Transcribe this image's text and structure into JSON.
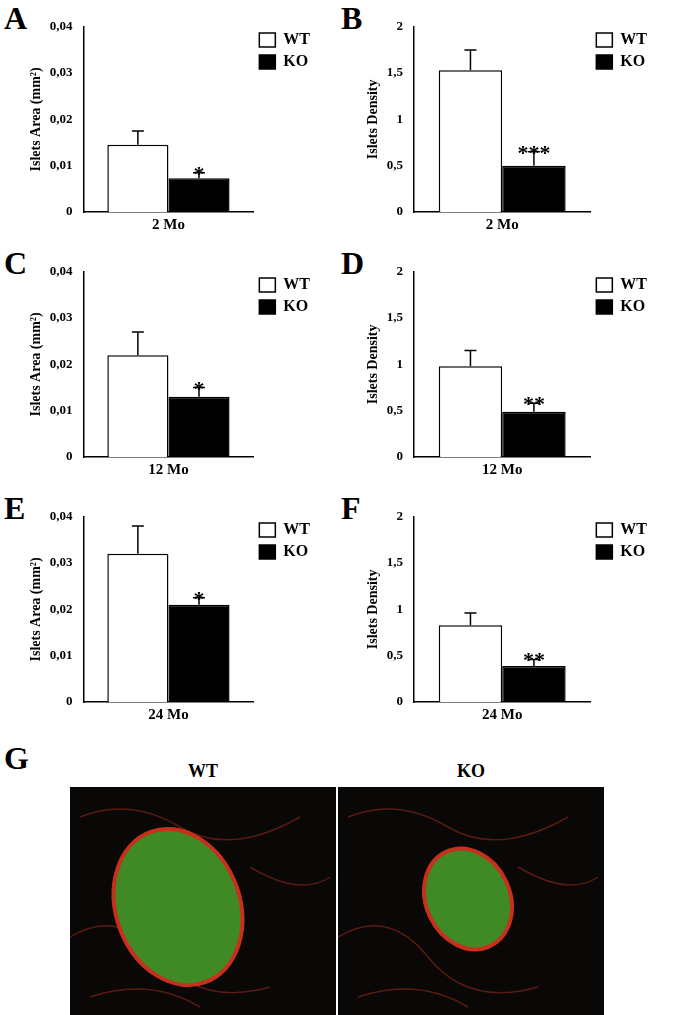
{
  "chart_data": [
    {
      "panel": "A",
      "type": "bar",
      "y_label": "Islets Area (mm²)",
      "categories": [
        "2 Mo"
      ],
      "series": [
        {
          "name": "WT",
          "color": "#ffffff",
          "values": [
            0.0145
          ],
          "errors": [
            0.003
          ]
        },
        {
          "name": "KO",
          "color": "#000000",
          "values": [
            0.0073
          ],
          "errors": [
            0.0012
          ]
        }
      ],
      "annotations": [
        {
          "series": "KO",
          "text": "*"
        }
      ],
      "ylim": [
        0,
        0.04
      ],
      "yticks": [
        0,
        {
          "value": 0.01,
          "label": "0,01"
        },
        {
          "value": 0.02,
          "label": "0,02"
        },
        {
          "value": 0.03,
          "label": "0,03"
        },
        {
          "value": 0.04,
          "label": "0,04"
        }
      ],
      "grid": false,
      "legend": "top right"
    },
    {
      "panel": "B",
      "type": "bar",
      "y_label": "Islets Density",
      "categories": [
        "2 Mo"
      ],
      "series": [
        {
          "name": "WT",
          "color": "#ffffff",
          "values": [
            1.53
          ],
          "errors": [
            0.22
          ]
        },
        {
          "name": "KO",
          "color": "#000000",
          "values": [
            0.5
          ],
          "errors": [
            0.15
          ]
        }
      ],
      "annotations": [
        {
          "series": "KO",
          "text": "***"
        }
      ],
      "ylim": [
        0,
        2
      ],
      "yticks": [
        0,
        {
          "value": 0.5,
          "label": "0,5"
        },
        1,
        {
          "value": 1.5,
          "label": "1,5"
        },
        2
      ],
      "grid": false,
      "legend": "top right"
    },
    {
      "panel": "C",
      "type": "bar",
      "y_label": "Islets Area (mm²)",
      "categories": [
        "12 Mo"
      ],
      "series": [
        {
          "name": "WT",
          "color": "#ffffff",
          "values": [
            0.022
          ],
          "errors": [
            0.005
          ]
        },
        {
          "name": "KO",
          "color": "#000000",
          "values": [
            0.013
          ],
          "errors": [
            0.002
          ]
        }
      ],
      "annotations": [
        {
          "series": "KO",
          "text": "*"
        }
      ],
      "ylim": [
        0,
        0.04
      ],
      "yticks": [
        0,
        {
          "value": 0.01,
          "label": "0,01"
        },
        {
          "value": 0.02,
          "label": "0,02"
        },
        {
          "value": 0.03,
          "label": "0,03"
        },
        {
          "value": 0.04,
          "label": "0,04"
        }
      ],
      "grid": false,
      "legend": "top right"
    },
    {
      "panel": "D",
      "type": "bar",
      "y_label": "Islets Density",
      "categories": [
        "12 Mo"
      ],
      "series": [
        {
          "name": "WT",
          "color": "#ffffff",
          "values": [
            0.98
          ],
          "errors": [
            0.17
          ]
        },
        {
          "name": "KO",
          "color": "#000000",
          "values": [
            0.49
          ],
          "errors": [
            0.09
          ]
        }
      ],
      "annotations": [
        {
          "series": "KO",
          "text": "**"
        }
      ],
      "ylim": [
        0,
        2
      ],
      "yticks": [
        0,
        {
          "value": 0.5,
          "label": "0,5"
        },
        1,
        {
          "value": 1.5,
          "label": "1,5"
        },
        2
      ],
      "grid": false,
      "legend": "top right"
    },
    {
      "panel": "E",
      "type": "bar",
      "y_label": "Islets Area (mm²)",
      "categories": [
        "24 Mo"
      ],
      "series": [
        {
          "name": "WT",
          "color": "#ffffff",
          "values": [
            0.032
          ],
          "errors": [
            0.006
          ]
        },
        {
          "name": "KO",
          "color": "#000000",
          "values": [
            0.021
          ],
          "errors": [
            0.0015
          ]
        }
      ],
      "annotations": [
        {
          "series": "KO",
          "text": "*"
        }
      ],
      "ylim": [
        0,
        0.04
      ],
      "yticks": [
        0,
        {
          "value": 0.01,
          "label": "0,01"
        },
        {
          "value": 0.02,
          "label": "0,02"
        },
        {
          "value": 0.03,
          "label": "0,03"
        },
        {
          "value": 0.04,
          "label": "0,04"
        }
      ],
      "grid": false,
      "legend": "top right"
    },
    {
      "panel": "F",
      "type": "bar",
      "y_label": "Islets Density",
      "categories": [
        "24 Mo"
      ],
      "series": [
        {
          "name": "WT",
          "color": "#ffffff",
          "values": [
            0.83
          ],
          "errors": [
            0.13
          ]
        },
        {
          "name": "KO",
          "color": "#000000",
          "values": [
            0.39
          ],
          "errors": [
            0.07
          ]
        }
      ],
      "annotations": [
        {
          "series": "KO",
          "text": "**"
        }
      ],
      "ylim": [
        0,
        2
      ],
      "yticks": [
        0,
        {
          "value": 0.5,
          "label": "0,5"
        },
        1,
        {
          "value": 1.5,
          "label": "1,5"
        },
        2
      ],
      "grid": false,
      "legend": "top right"
    }
  ],
  "image_panel": {
    "panel": "G",
    "labels": [
      "WT",
      "KO"
    ]
  }
}
